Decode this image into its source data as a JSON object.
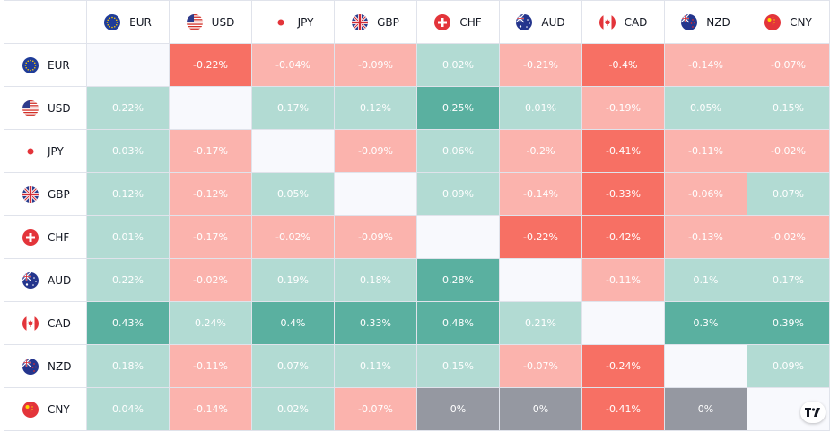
{
  "currencies": [
    {
      "code": "EUR",
      "flag": "eu-flag-icon"
    },
    {
      "code": "USD",
      "flag": "us-flag-icon"
    },
    {
      "code": "JPY",
      "flag": "jp-flag-icon"
    },
    {
      "code": "GBP",
      "flag": "gb-flag-icon"
    },
    {
      "code": "CHF",
      "flag": "ch-flag-icon"
    },
    {
      "code": "AUD",
      "flag": "au-flag-icon"
    },
    {
      "code": "CAD",
      "flag": "ca-flag-icon"
    },
    {
      "code": "NZD",
      "flag": "nz-flag-icon"
    },
    {
      "code": "CNY",
      "flag": "cn-flag-icon"
    }
  ],
  "matrix": [
    [
      "",
      "-0.22%",
      "-0.04%",
      "-0.09%",
      "0.02%",
      "-0.21%",
      "-0.4%",
      "-0.14%",
      "-0.07%"
    ],
    [
      "0.22%",
      "",
      "0.17%",
      "0.12%",
      "0.25%",
      "0.01%",
      "-0.19%",
      "0.05%",
      "0.15%"
    ],
    [
      "0.03%",
      "-0.17%",
      "",
      "-0.09%",
      "0.06%",
      "-0.2%",
      "-0.41%",
      "-0.11%",
      "-0.02%"
    ],
    [
      "0.12%",
      "-0.12%",
      "0.05%",
      "",
      "0.09%",
      "-0.14%",
      "-0.33%",
      "-0.06%",
      "0.07%"
    ],
    [
      "0.01%",
      "-0.17%",
      "-0.02%",
      "-0.09%",
      "",
      "-0.22%",
      "-0.42%",
      "-0.13%",
      "-0.02%"
    ],
    [
      "0.22%",
      "-0.02%",
      "0.19%",
      "0.18%",
      "0.28%",
      "",
      "-0.11%",
      "0.1%",
      "0.17%"
    ],
    [
      "0.43%",
      "0.24%",
      "0.4%",
      "0.33%",
      "0.48%",
      "0.21%",
      "",
      "0.3%",
      "0.39%"
    ],
    [
      "0.18%",
      "-0.11%",
      "0.07%",
      "0.11%",
      "0.15%",
      "-0.07%",
      "-0.24%",
      "",
      "0.09%"
    ],
    [
      "0.04%",
      "-0.14%",
      "0.02%",
      "-0.07%",
      "0%",
      "0%",
      "-0.41%",
      "0%",
      ""
    ]
  ],
  "colors": {
    "pos_light": "#b2dbd3",
    "pos_strong": "#5ab0a0",
    "neg_light": "#fbb3ad",
    "neg_strong": "#f77064",
    "neutral": "#9598a1",
    "diagonal": "#f8f9fd",
    "grid": "#e0e3eb"
  },
  "brand": {
    "logo_icon": "tradingview-logo-icon"
  }
}
